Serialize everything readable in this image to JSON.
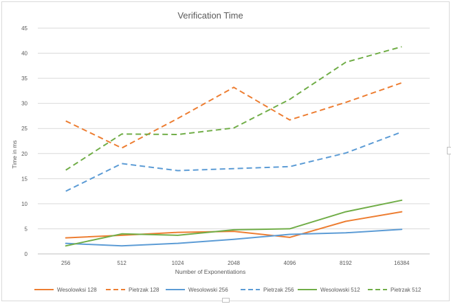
{
  "chart_data": {
    "type": "line",
    "title": "Verification Time",
    "xlabel": "Number of Exponentiations",
    "ylabel": "Time in ms",
    "categories": [
      "256",
      "512",
      "1024",
      "2048",
      "4096",
      "8192",
      "16384"
    ],
    "ylim": [
      0,
      45
    ],
    "yticks": [
      0,
      5,
      10,
      15,
      20,
      25,
      30,
      35,
      40,
      45
    ],
    "grid": true,
    "legend_position": "bottom",
    "series": [
      {
        "name": "Wesolowksi 128",
        "color": "#ED7D31",
        "dash": "solid",
        "values": [
          3.2,
          3.7,
          4.3,
          4.5,
          3.3,
          6.5,
          8.4
        ]
      },
      {
        "name": "Pietrzak 128",
        "color": "#ED7D31",
        "dash": "dashed",
        "values": [
          26.5,
          21.1,
          27.0,
          33.2,
          26.7,
          30.2,
          34.1
        ]
      },
      {
        "name": "Wesolowski 256",
        "color": "#5B9BD5",
        "dash": "solid",
        "values": [
          2.1,
          1.6,
          2.1,
          2.9,
          3.9,
          4.2,
          4.9
        ]
      },
      {
        "name": "Pietrzak 256",
        "color": "#5B9BD5",
        "dash": "dashed",
        "values": [
          12.5,
          18.0,
          16.6,
          17.0,
          17.4,
          20.1,
          24.3
        ]
      },
      {
        "name": "Wesolowski 512",
        "color": "#70AD47",
        "dash": "solid",
        "values": [
          1.6,
          4.0,
          3.7,
          4.8,
          5.0,
          8.4,
          10.7
        ]
      },
      {
        "name": "Pietrzak 512",
        "color": "#70AD47",
        "dash": "dashed",
        "values": [
          16.7,
          23.9,
          23.8,
          25.1,
          30.8,
          38.2,
          41.3
        ]
      }
    ]
  }
}
